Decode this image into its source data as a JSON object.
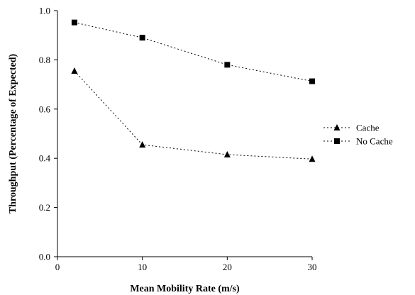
{
  "chart_data": {
    "type": "line",
    "title": "",
    "xlabel": "Mean Mobility Rate (m/s)",
    "ylabel": "Throughput (Percentage of Expected)",
    "xlim": [
      0,
      30
    ],
    "ylim": [
      0.0,
      1.0
    ],
    "x_ticks": [
      "0",
      "10",
      "20",
      "30"
    ],
    "y_ticks": [
      "0.0",
      "0.2",
      "0.4",
      "0.6",
      "0.8",
      "1.0"
    ],
    "grid": false,
    "legend_position": "right",
    "series": [
      {
        "name": "Cache",
        "marker": "triangle",
        "line_style": "dotted",
        "x": [
          2,
          10,
          20,
          30
        ],
        "y": [
          0.755,
          0.455,
          0.415,
          0.397
        ]
      },
      {
        "name": "No Cache",
        "marker": "square",
        "line_style": "dotted",
        "x": [
          2,
          10,
          20,
          30
        ],
        "y": [
          0.952,
          0.89,
          0.78,
          0.713
        ]
      }
    ]
  }
}
